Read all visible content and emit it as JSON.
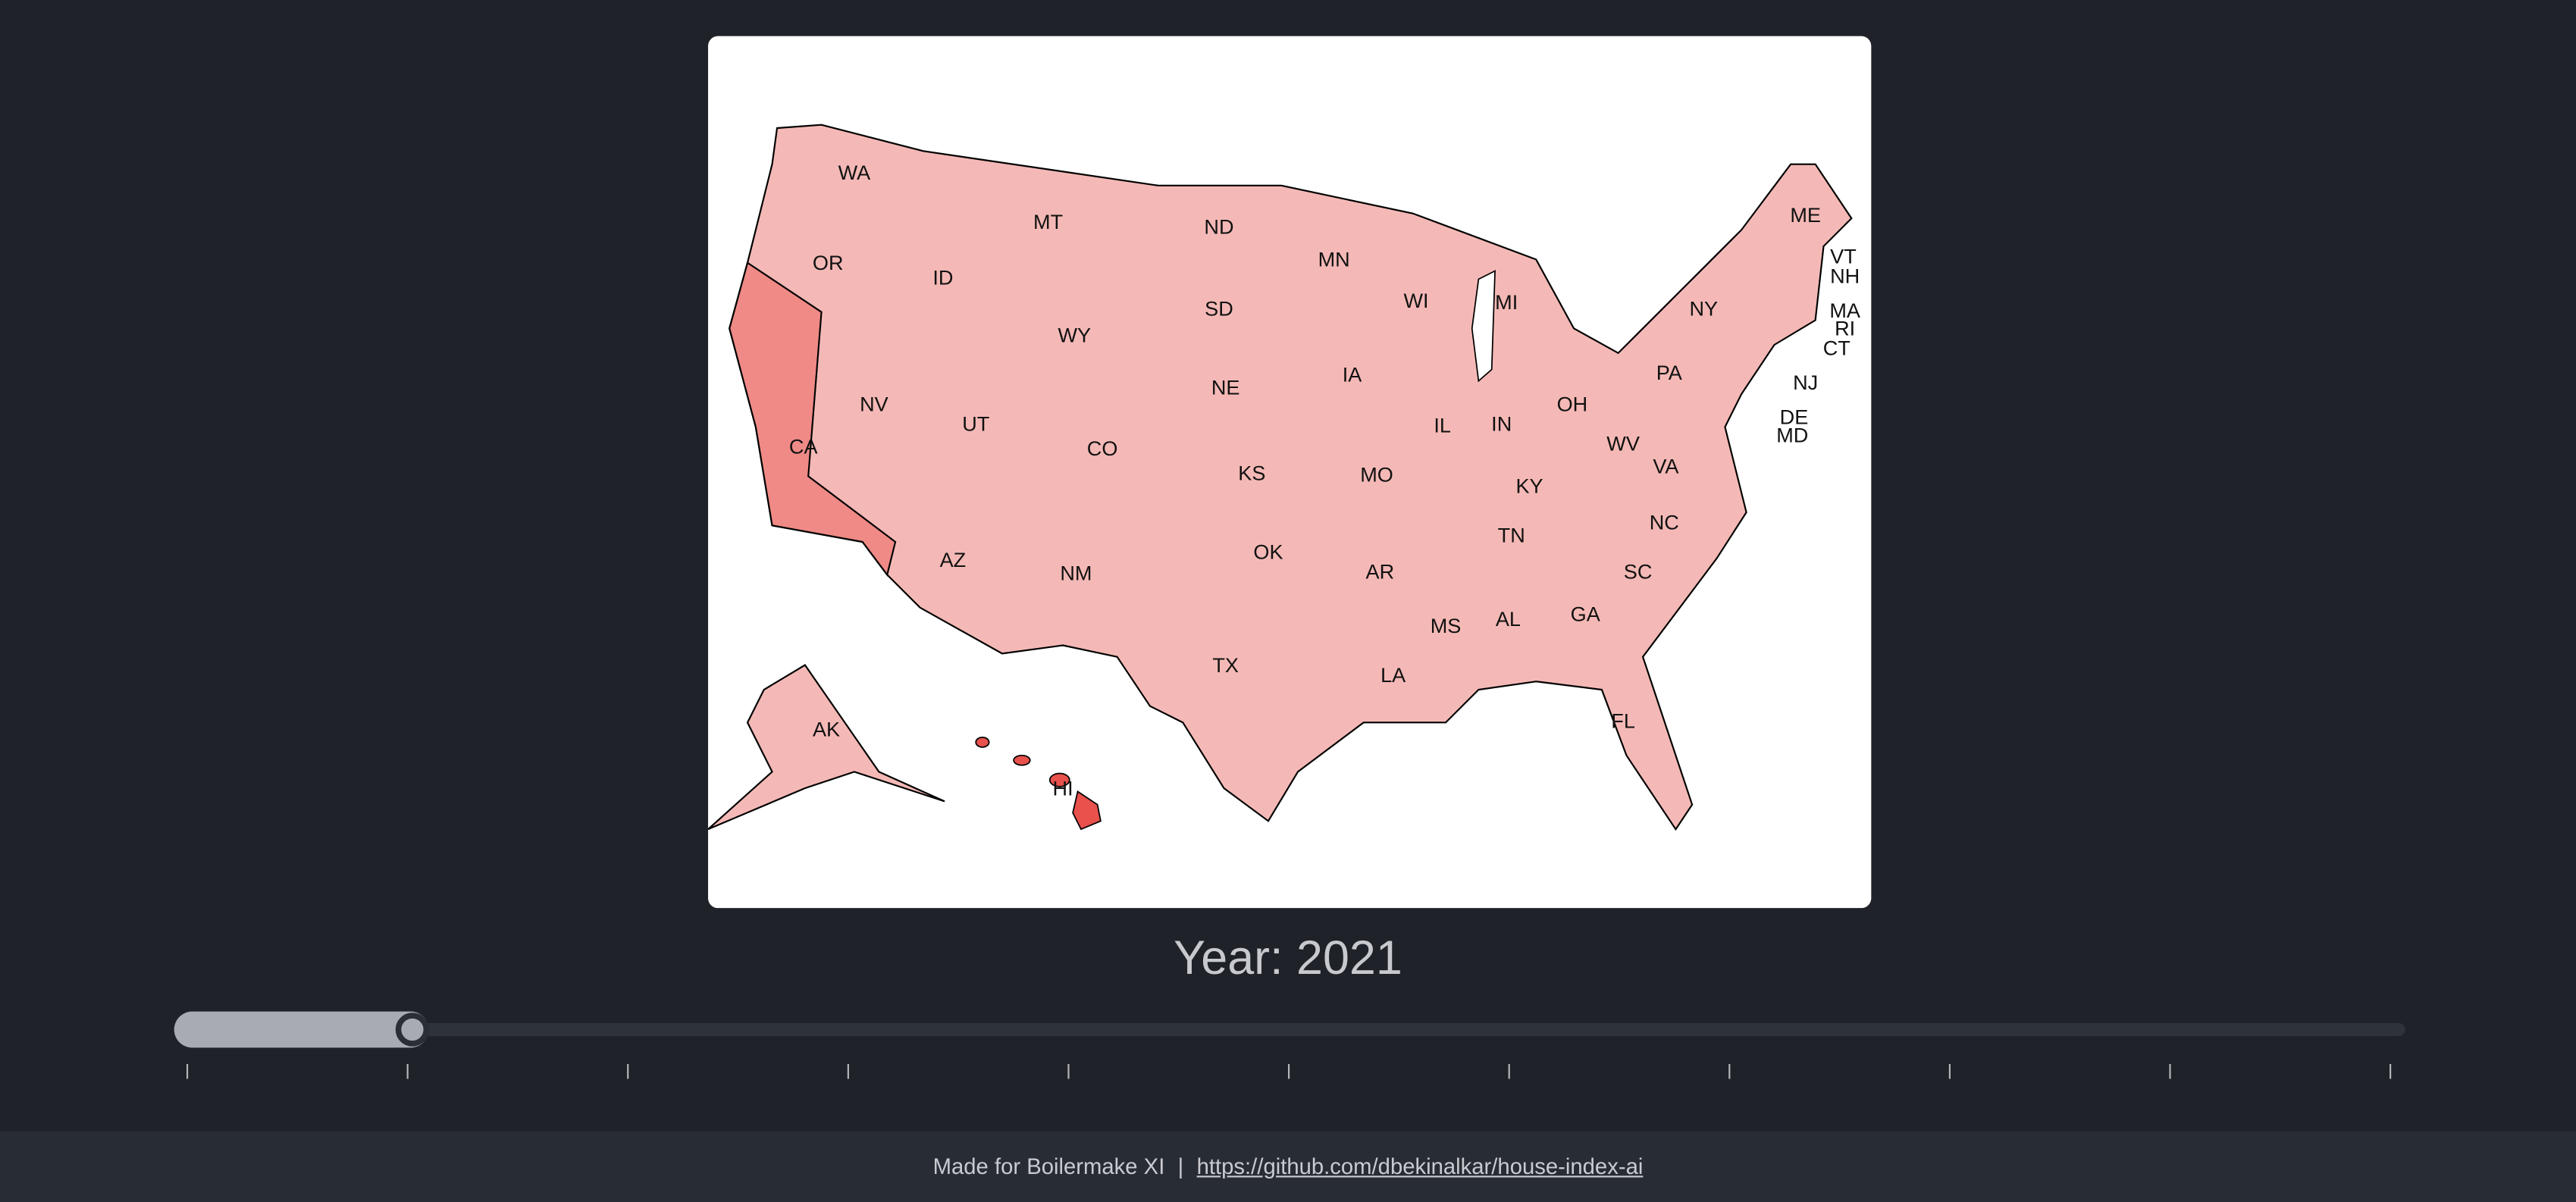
{
  "map": {
    "states": [
      "WA",
      "OR",
      "CA",
      "ID",
      "NV",
      "MT",
      "WY",
      "UT",
      "AZ",
      "CO",
      "NM",
      "ND",
      "SD",
      "NE",
      "KS",
      "OK",
      "TX",
      "MN",
      "IA",
      "MO",
      "AR",
      "LA",
      "WI",
      "IL",
      "MI",
      "IN",
      "OH",
      "KY",
      "TN",
      "MS",
      "AL",
      "GA",
      "FL",
      "SC",
      "NC",
      "VA",
      "WV",
      "PA",
      "NY",
      "ME",
      "VT",
      "NH",
      "MA",
      "RI",
      "CT",
      "NJ",
      "DE",
      "MD",
      "AK",
      "HI"
    ]
  },
  "year_label": "Year: 2021",
  "footer": {
    "text": "Made for Boilermake XI",
    "separator": "|",
    "link": "https://github.com/dbekinalkar/house-index-ai"
  }
}
